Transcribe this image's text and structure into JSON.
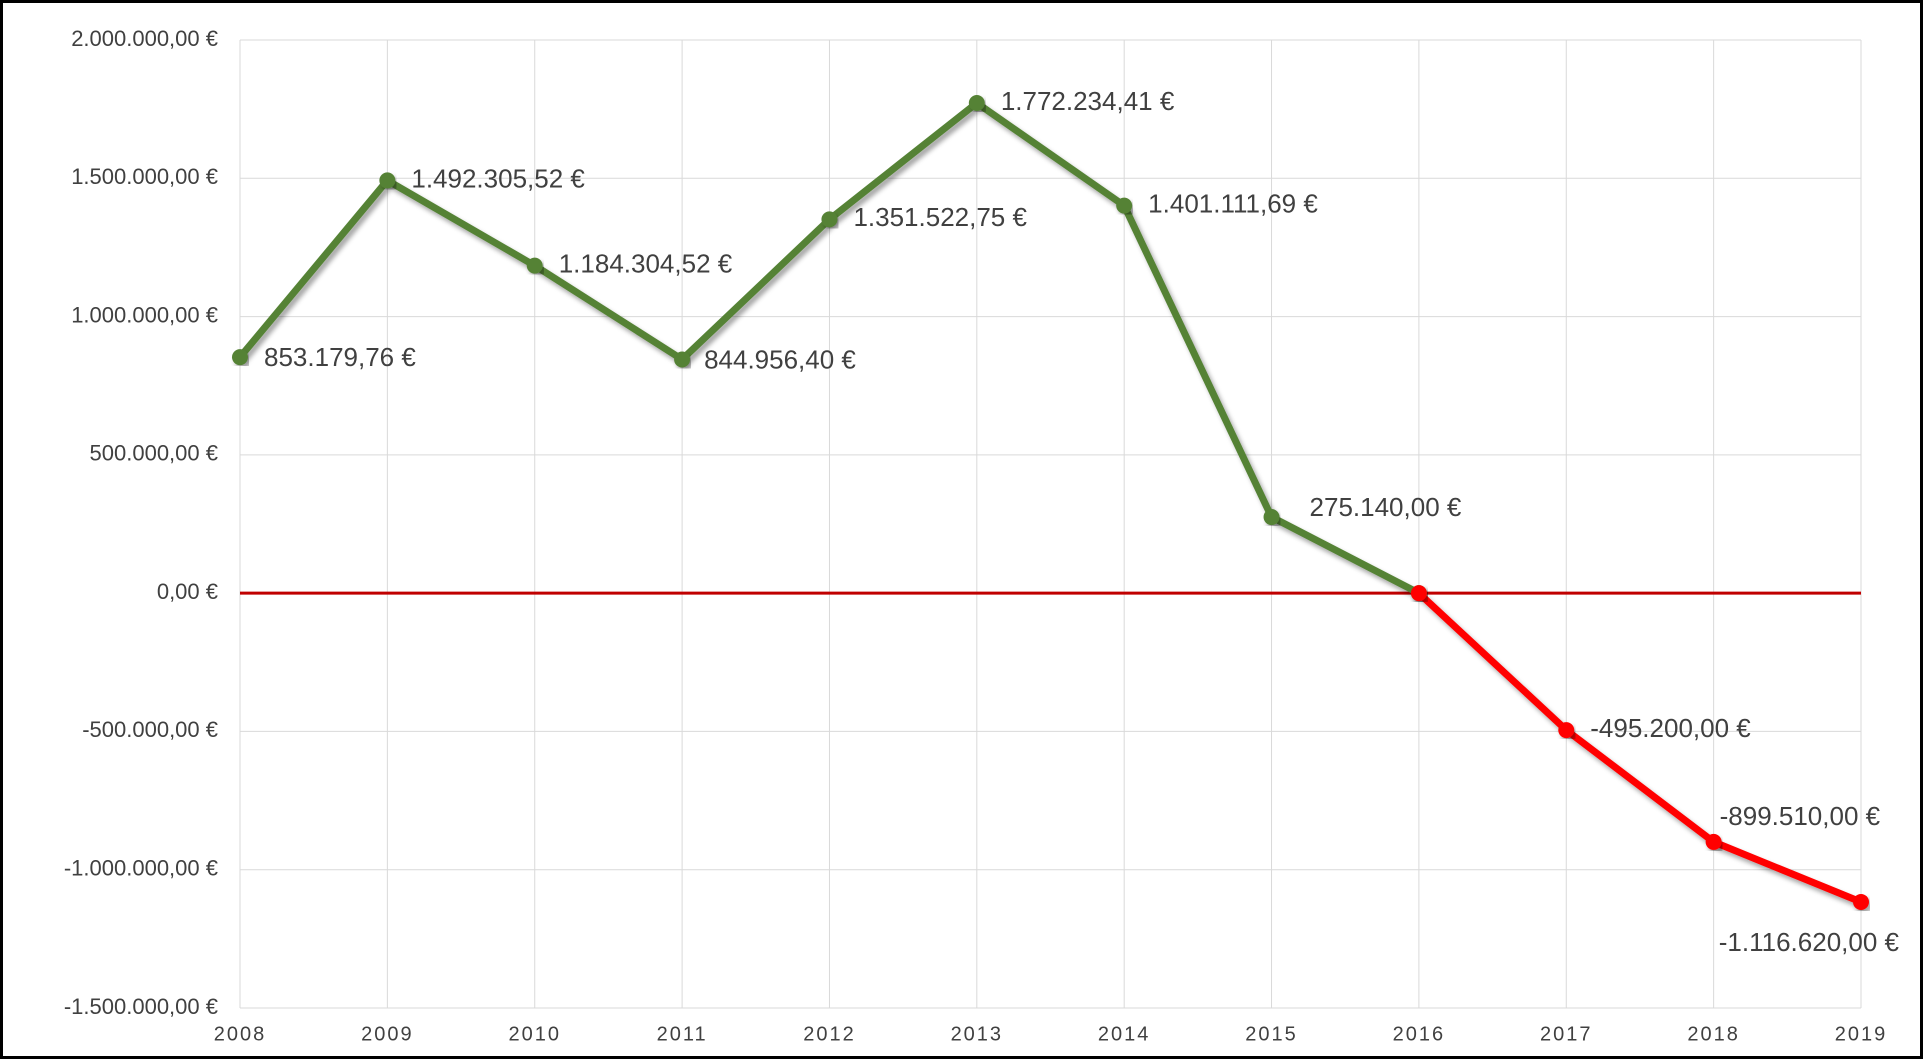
{
  "chart_data": {
    "type": "line",
    "categories": [
      "2008",
      "2009",
      "2010",
      "2011",
      "2012",
      "2013",
      "2014",
      "2015",
      "2016",
      "2017",
      "2018",
      "2019"
    ],
    "series": [
      {
        "color": "#548235",
        "values": [
          853179.76,
          1492305.52,
          1184304.52,
          844956.4,
          1351522.75,
          1772234.41,
          1401111.69,
          275140.0,
          0,
          null,
          null,
          null
        ],
        "value_labels": [
          "853.179,76 €",
          "1.492.305,52 €",
          "1.184.304,52 €",
          "844.956,40 €",
          "1.351.522,75 €",
          "1.772.234,41 €",
          "1.401.111,69 €",
          "275.140,00 €",
          null,
          null,
          null,
          null
        ]
      },
      {
        "color": "#ff0000",
        "values": [
          null,
          null,
          null,
          null,
          null,
          null,
          null,
          null,
          0,
          -495200.0,
          -899510.0,
          -1116620.0
        ],
        "value_labels": [
          null,
          null,
          null,
          null,
          null,
          null,
          null,
          null,
          null,
          "-495.200,00 €",
          "-899.510,00 €",
          "-1.116.620,00 €"
        ]
      }
    ],
    "ylim": [
      -1500000,
      2000000
    ],
    "yticks": [
      {
        "value": -1500000,
        "label": "-1.500.000,00 €"
      },
      {
        "value": -1000000,
        "label": "-1.000.000,00 €"
      },
      {
        "value": -500000,
        "label": "-500.000,00 €"
      },
      {
        "value": 0,
        "label": "0,00 €"
      },
      {
        "value": 500000,
        "label": "500.000,00 €"
      },
      {
        "value": 1000000,
        "label": "1.000.000,00 €"
      },
      {
        "value": 1500000,
        "label": "1.500.000,00 €"
      },
      {
        "value": 2000000,
        "label": "2.000.000,00 €"
      }
    ],
    "grid": true,
    "reference_line": {
      "value": 0,
      "color": "#c00000"
    }
  }
}
